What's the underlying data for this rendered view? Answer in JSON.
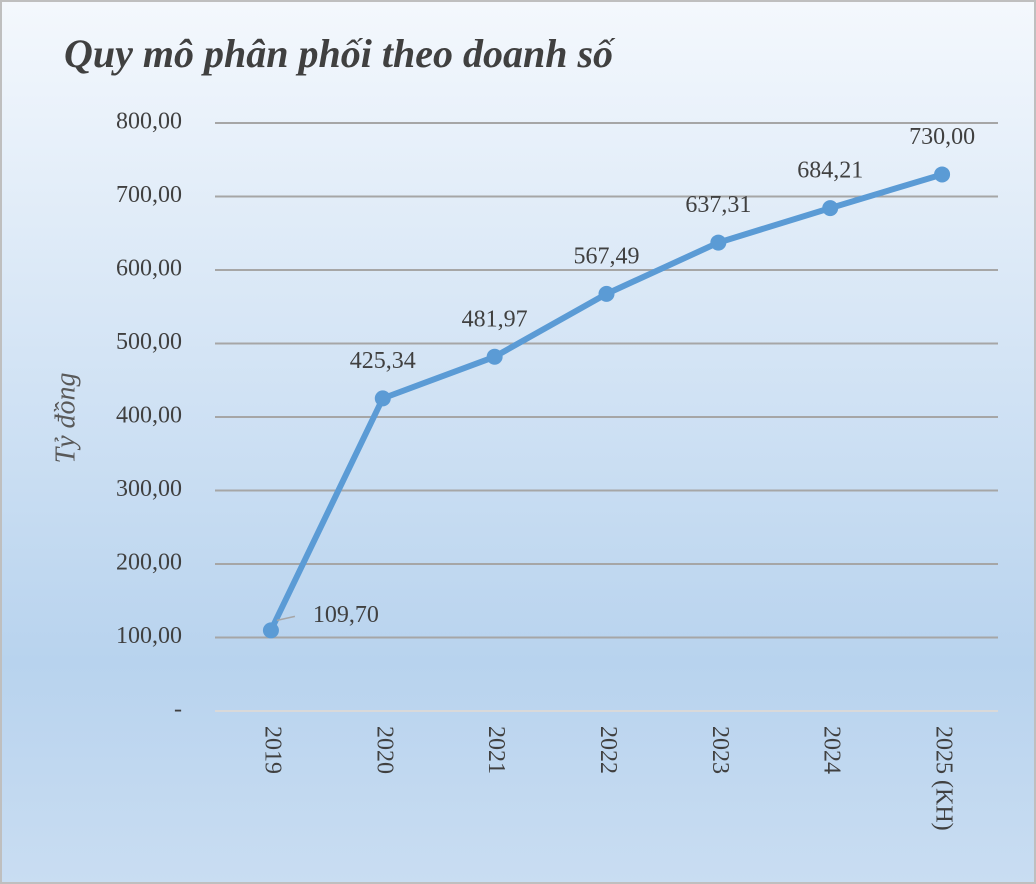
{
  "chart_data": {
    "type": "line",
    "title": "Quy mô phân phối theo doanh số",
    "y_label": "Tỷ đồng",
    "categories": [
      "2019",
      "2020",
      "2021",
      "2022",
      "2023",
      "2024",
      "2025 (KH)"
    ],
    "values": [
      109.7,
      425.34,
      481.97,
      567.49,
      637.31,
      684.21,
      730.0
    ],
    "value_labels": [
      "109,70",
      "425,34",
      "481,97",
      "567,49",
      "637,31",
      "684,21",
      "730,00"
    ],
    "color": "#5b9bd5",
    "ylim": [
      0,
      800
    ],
    "yticks": [
      {
        "value": 0,
        "label": "-"
      },
      {
        "value": 100,
        "label": "100,00"
      },
      {
        "value": 200,
        "label": "200,00"
      },
      {
        "value": 300,
        "label": "300,00"
      },
      {
        "value": 400,
        "label": "400,00"
      },
      {
        "value": 500,
        "label": "500,00"
      },
      {
        "value": 600,
        "label": "600,00"
      },
      {
        "value": 700,
        "label": "700,00"
      },
      {
        "value": 800,
        "label": "800,00"
      }
    ],
    "grid": true
  }
}
